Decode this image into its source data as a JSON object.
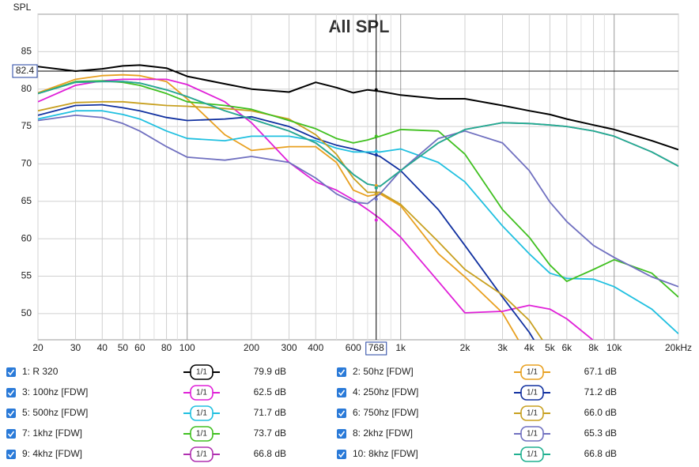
{
  "chart_data": {
    "type": "line",
    "title": "All SPL",
    "ylabel": "SPL",
    "xscale": "log",
    "grid": true,
    "xlim": [
      20,
      20000
    ],
    "ylim": [
      46.5,
      90
    ],
    "yticks": [
      50,
      55,
      60,
      65,
      70,
      75,
      80,
      85
    ],
    "xticks": [
      20,
      30,
      40,
      50,
      60,
      80,
      100,
      200,
      300,
      400,
      600,
      {
        "value": 1000,
        "label": "1k"
      },
      {
        "value": 2000,
        "label": "2k"
      },
      {
        "value": 3000,
        "label": "3k"
      },
      {
        "value": 4000,
        "label": "4k"
      },
      {
        "value": 5000,
        "label": "5k"
      },
      {
        "value": 6000,
        "label": "6k"
      },
      {
        "value": 8000,
        "label": "8k"
      },
      {
        "value": 10000,
        "label": "10k"
      },
      {
        "value": 20000,
        "label": "20kHz"
      }
    ],
    "xgrid_minor": [
      70,
      90,
      500,
      700,
      800,
      900,
      7000,
      9000
    ],
    "cursor": {
      "x": 768,
      "y": 82.4
    },
    "x": [
      20,
      30,
      40,
      50,
      60,
      80,
      100,
      150,
      200,
      300,
      400,
      500,
      600,
      700,
      800,
      1000,
      1500,
      2000,
      3000,
      4000,
      5000,
      6000,
      8000,
      10000,
      15000,
      20000
    ],
    "series": [
      {
        "name": "1: R 320",
        "color": "#000000",
        "smoothing": "1/1",
        "cursor_value": 79.9,
        "cursor_value_label": "79.9 dB",
        "values": [
          83.0,
          82.4,
          82.7,
          83.1,
          83.2,
          82.8,
          81.7,
          80.7,
          80.0,
          79.6,
          80.9,
          80.2,
          79.5,
          79.9,
          79.7,
          79.2,
          78.7,
          78.7,
          77.8,
          77.1,
          76.6,
          76.0,
          75.2,
          74.6,
          73.1,
          71.9
        ]
      },
      {
        "name": "2: 50hz [FDW]",
        "color": "#e8a020",
        "smoothing": "1/1",
        "cursor_value": 67.1,
        "cursor_value_label": "67.1 dB",
        "values": [
          79.5,
          81.3,
          81.8,
          81.9,
          81.8,
          81.0,
          78.7,
          73.9,
          71.8,
          72.3,
          72.3,
          70.2,
          66.5,
          65.7,
          66.0,
          64.4,
          58.0,
          54.9,
          50.1,
          44.0,
          null,
          null,
          null,
          null,
          null,
          null
        ]
      },
      {
        "name": "3: 100hz [FDW]",
        "color": "#e020d8",
        "smoothing": "1/1",
        "cursor_value": 62.5,
        "cursor_value_label": "62.5 dB",
        "values": [
          78.3,
          80.5,
          81.1,
          81.3,
          81.3,
          81.3,
          80.6,
          78.3,
          75.5,
          70.2,
          67.6,
          66.5,
          65.2,
          63.9,
          62.7,
          60.2,
          54.3,
          50.1,
          50.3,
          51.1,
          50.6,
          49.3,
          46.4,
          44.0,
          null,
          null
        ]
      },
      {
        "name": "4: 250hz [FDW]",
        "color": "#1030a0",
        "smoothing": "1/1",
        "cursor_value": 71.2,
        "cursor_value_label": "71.2 dB",
        "values": [
          76.5,
          77.8,
          77.9,
          77.5,
          77.1,
          76.2,
          75.8,
          76.0,
          76.3,
          75.0,
          73.4,
          72.5,
          72.0,
          71.5,
          71.0,
          69.1,
          63.9,
          59.1,
          52.2,
          47.5,
          43.0,
          null,
          null,
          null,
          null,
          null
        ]
      },
      {
        "name": "5: 500hz [FDW]",
        "color": "#20c0e0",
        "smoothing": "1/1",
        "cursor_value": 71.7,
        "cursor_value_label": "71.7 dB",
        "values": [
          76.0,
          77.1,
          77.1,
          76.6,
          76.0,
          74.4,
          73.4,
          73.1,
          73.7,
          73.7,
          73.1,
          72.1,
          71.6,
          71.6,
          71.6,
          72.0,
          70.2,
          67.6,
          61.7,
          58.0,
          55.4,
          54.7,
          54.6,
          53.6,
          50.6,
          47.3
        ]
      },
      {
        "name": "6: 750hz [FDW]",
        "color": "#c8a020",
        "smoothing": "1/1",
        "cursor_value": 66.0,
        "cursor_value_label": "66.0 dB",
        "values": [
          77.1,
          78.2,
          78.3,
          78.3,
          78.1,
          77.8,
          77.7,
          77.4,
          77.1,
          76.0,
          73.9,
          71.3,
          68.1,
          66.2,
          66.2,
          64.6,
          59.6,
          55.9,
          52.5,
          49.1,
          45.0,
          null,
          null,
          null,
          null,
          null
        ]
      },
      {
        "name": "7: 1khz [FDW]",
        "color": "#40c020",
        "smoothing": "1/1",
        "cursor_value": 73.7,
        "cursor_value_label": "73.7 dB",
        "values": [
          79.4,
          81.0,
          81.1,
          80.9,
          80.5,
          79.4,
          78.3,
          77.8,
          77.3,
          75.8,
          74.7,
          73.4,
          72.8,
          73.2,
          73.7,
          74.6,
          74.4,
          71.3,
          63.9,
          60.2,
          56.5,
          54.3,
          55.9,
          57.2,
          55.4,
          52.2
        ]
      },
      {
        "name": "8: 2khz [FDW]",
        "color": "#7070c0",
        "smoothing": "1/1",
        "cursor_value": 65.3,
        "cursor_value_label": "65.3 dB",
        "values": [
          75.8,
          76.5,
          76.2,
          75.4,
          74.4,
          72.3,
          70.9,
          70.5,
          71.0,
          70.2,
          68.1,
          66.0,
          64.9,
          64.7,
          66.0,
          69.1,
          73.4,
          74.4,
          72.8,
          69.1,
          64.9,
          62.3,
          59.1,
          57.5,
          54.9,
          53.6
        ]
      },
      {
        "name": "9: 4khz [FDW]",
        "color": "#b030b0",
        "smoothing": "1/1",
        "cursor_value": 66.8,
        "cursor_value_label": "66.8 dB",
        "values": [
          79.4,
          80.9,
          81.0,
          81.0,
          80.8,
          79.9,
          79.0,
          77.1,
          76.0,
          74.4,
          72.8,
          70.7,
          68.6,
          67.3,
          67.0,
          69.1,
          72.8,
          74.6,
          75.5,
          75.4,
          75.2,
          75.0,
          74.4,
          73.7,
          71.6,
          69.7
        ]
      },
      {
        "name": "10: 8khz [FDW]",
        "color": "#20b090",
        "smoothing": "1/1",
        "cursor_value": 66.8,
        "cursor_value_label": "66.8 dB",
        "values": [
          79.4,
          80.9,
          81.0,
          81.0,
          80.8,
          79.9,
          79.0,
          77.1,
          76.0,
          74.4,
          72.8,
          70.7,
          68.6,
          67.3,
          67.0,
          69.1,
          72.8,
          74.6,
          75.5,
          75.4,
          75.2,
          75.0,
          74.4,
          73.7,
          71.6,
          69.7
        ]
      }
    ]
  }
}
